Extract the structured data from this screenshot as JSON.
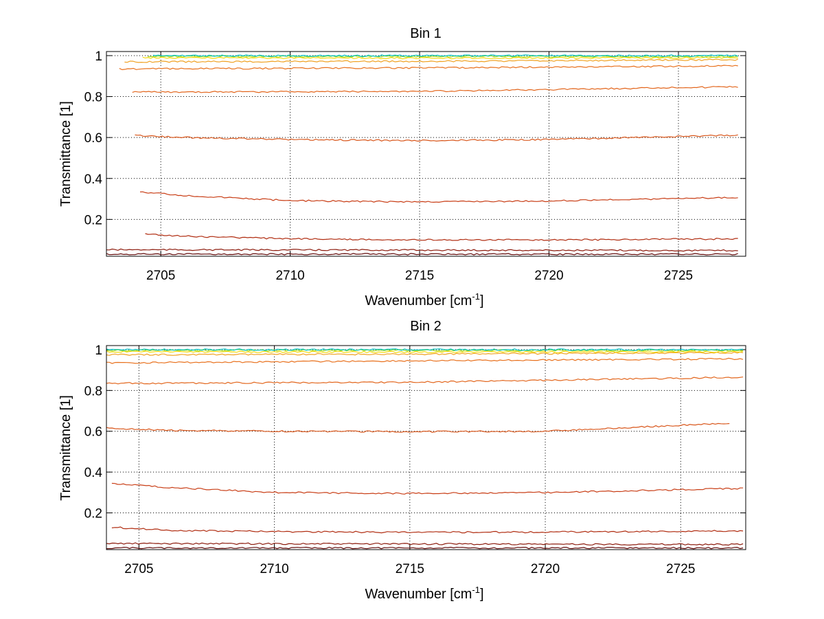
{
  "chart_data": [
    {
      "type": "line",
      "title": "Bin 1",
      "xlabel_main": "Wavenumber [cm",
      "xlabel_sup": "-1",
      "xlabel_end": "]",
      "ylabel": "Transmittance [1]",
      "xlim": [
        2702.9,
        2727.6
      ],
      "ylim": [
        0.02,
        1.02
      ],
      "xticks": [
        2705,
        2710,
        2715,
        2720,
        2725
      ],
      "xtick_labels": [
        "2705",
        "2710",
        "2715",
        "2720",
        "2725"
      ],
      "yticks": [
        0.2,
        0.4,
        0.6,
        0.8,
        1
      ],
      "ytick_labels": [
        "0.2",
        "0.4",
        "0.6",
        "0.8",
        "1"
      ],
      "grid": true,
      "series": [
        {
          "color": "#00c0c0",
          "x": [
            2704.7,
            2727.3
          ],
          "y": [
            1.0,
            1.0
          ]
        },
        {
          "color": "#9adb28",
          "x": [
            2704.5,
            2727.3
          ],
          "y": [
            0.997,
            0.995
          ]
        },
        {
          "color": "#f5d90a",
          "x": [
            2704.3,
            2715,
            2727.3
          ],
          "y": [
            0.99,
            0.988,
            0.99
          ]
        },
        {
          "color": "#f0a020",
          "x": [
            2703.6,
            2715,
            2727.3
          ],
          "y": [
            0.97,
            0.972,
            0.98
          ]
        },
        {
          "color": "#e8701c",
          "x": [
            2703.4,
            2715,
            2727.3
          ],
          "y": [
            0.935,
            0.94,
            0.95
          ]
        },
        {
          "color": "#e2641a",
          "x": [
            2703.9,
            2715,
            2727.3
          ],
          "y": [
            0.822,
            0.825,
            0.848
          ]
        },
        {
          "color": "#d85418",
          "x": [
            2704.0,
            2706,
            2710,
            2715,
            2720,
            2727.3
          ],
          "y": [
            0.61,
            0.6,
            0.59,
            0.585,
            0.59,
            0.612
          ]
        },
        {
          "color": "#c83c14",
          "x": [
            2704.2,
            2706,
            2710,
            2715,
            2720,
            2727.3
          ],
          "y": [
            0.335,
            0.315,
            0.292,
            0.285,
            0.29,
            0.308
          ]
        },
        {
          "color": "#b02c10",
          "x": [
            2704.4,
            2706,
            2710,
            2715,
            2720,
            2727.3
          ],
          "y": [
            0.128,
            0.118,
            0.105,
            0.1,
            0.1,
            0.105
          ]
        },
        {
          "color": "#8c1a0c",
          "x": [
            2702.9,
            2727.3
          ],
          "y": [
            0.052,
            0.048
          ]
        },
        {
          "color": "#600808",
          "x": [
            2702.9,
            2727.3
          ],
          "y": [
            0.03,
            0.03
          ]
        }
      ]
    },
    {
      "type": "line",
      "title": "Bin 2",
      "xlabel_main": "Wavenumber [cm",
      "xlabel_sup": "-1",
      "xlabel_end": "]",
      "ylabel": "Transmittance [1]",
      "xlim": [
        2703.8,
        2727.4
      ],
      "ylim": [
        0.02,
        1.02
      ],
      "xticks": [
        2705,
        2710,
        2715,
        2720,
        2725
      ],
      "xtick_labels": [
        "2705",
        "2710",
        "2715",
        "2720",
        "2725"
      ],
      "yticks": [
        0.2,
        0.4,
        0.6,
        0.8,
        1
      ],
      "ytick_labels": [
        "0.2",
        "0.4",
        "0.6",
        "0.8",
        "1"
      ],
      "grid": true,
      "series": [
        {
          "color": "#00c0c0",
          "x": [
            2703.8,
            2727.3
          ],
          "y": [
            1.0,
            1.0
          ]
        },
        {
          "color": "#9adb28",
          "x": [
            2703.8,
            2727.3
          ],
          "y": [
            0.997,
            0.996
          ]
        },
        {
          "color": "#f5d90a",
          "x": [
            2703.8,
            2715,
            2727.3
          ],
          "y": [
            0.99,
            0.988,
            0.99
          ]
        },
        {
          "color": "#f0a020",
          "x": [
            2703.8,
            2715,
            2727.3
          ],
          "y": [
            0.975,
            0.978,
            0.985
          ]
        },
        {
          "color": "#e8701c",
          "x": [
            2703.8,
            2715,
            2727.3
          ],
          "y": [
            0.935,
            0.945,
            0.955
          ]
        },
        {
          "color": "#e2641a",
          "x": [
            2703.8,
            2715,
            2727.3
          ],
          "y": [
            0.835,
            0.84,
            0.865
          ]
        },
        {
          "color": "#d85418",
          "x": [
            2703.8,
            2706,
            2710,
            2715,
            2720,
            2726.8
          ],
          "y": [
            0.615,
            0.605,
            0.6,
            0.598,
            0.6,
            0.64
          ]
        },
        {
          "color": "#c83c14",
          "x": [
            2704.0,
            2706,
            2710,
            2715,
            2720,
            2727.3
          ],
          "y": [
            0.345,
            0.325,
            0.3,
            0.295,
            0.3,
            0.32
          ]
        },
        {
          "color": "#b02c10",
          "x": [
            2704.0,
            2706,
            2710,
            2715,
            2720,
            2727.3
          ],
          "y": [
            0.13,
            0.115,
            0.108,
            0.105,
            0.106,
            0.112
          ]
        },
        {
          "color": "#8c1a0c",
          "x": [
            2703.8,
            2727.3
          ],
          "y": [
            0.05,
            0.045
          ]
        },
        {
          "color": "#600808",
          "x": [
            2703.8,
            2727.3
          ],
          "y": [
            0.028,
            0.028
          ]
        }
      ]
    }
  ]
}
